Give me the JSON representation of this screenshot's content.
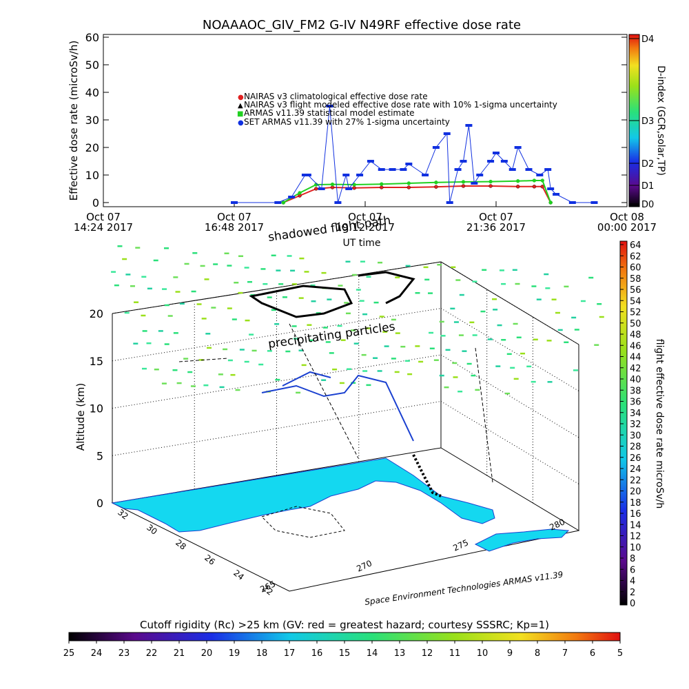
{
  "title": "NOAAAOC_GIV_FM2  G-IV   N49RF  effective dose rate",
  "top_chart": {
    "ylabel": "Effective dose rate (microSv/h)",
    "xlabel": "UT time",
    "yticks": [
      "0",
      "10",
      "20",
      "30",
      "40",
      "50",
      "60"
    ],
    "xticks": [
      {
        "l1": "Oct 07",
        "l2": "14:24 2017"
      },
      {
        "l1": "Oct 07",
        "l2": "16:48 2017"
      },
      {
        "l1": "Oct 07",
        "l2": "19:12 2017"
      },
      {
        "l1": "Oct 07",
        "l2": "21:36 2017"
      },
      {
        "l1": "Oct 08",
        "l2": "00:00 2017"
      }
    ],
    "legend": [
      {
        "symbol": "●",
        "text": "NAIRAS v3 climatological effective dose rate"
      },
      {
        "symbol": "▲",
        "text": "NAIRAS v3 flight modeled effective dose rate with 10% 1-sigma uncertainty"
      },
      {
        "symbol": "■",
        "text": "ARMAS v11.39 statistical model estimate"
      },
      {
        "symbol": "●",
        "text": "SET ARMAS v11.39 with 27% 1-sigma uncertainty"
      }
    ],
    "dindex": {
      "label": "D-index (GCR,solar,TP)",
      "ticks": [
        "D4",
        "D3",
        "D2",
        "D1",
        "D0"
      ]
    }
  },
  "chart_data": [
    {
      "type": "line",
      "title": "NOAAAOC_GIV_FM2  G-IV   N49RF  effective dose rate",
      "xlabel": "UT time",
      "ylabel": "Effective dose rate (microSv/h)",
      "x_unit": "UT hours since Oct 07 00:00 2017",
      "xlim": [
        14.4,
        24.0
      ],
      "ylim": [
        0,
        60
      ],
      "series": [
        {
          "name": "NAIRAS v3 climatological effective dose rate",
          "color": "#e02020",
          "x": [
            17.7,
            18.0,
            18.3,
            18.6,
            19.0,
            19.5,
            20.0,
            20.5,
            21.0,
            21.5,
            22.0,
            22.3,
            22.45,
            22.6
          ],
          "values": [
            0.0,
            2.5,
            5.0,
            5.5,
            5.3,
            5.5,
            5.5,
            5.7,
            6.0,
            6.0,
            5.8,
            5.8,
            5.8,
            0.0
          ]
        },
        {
          "name": "ARMAS v11.39 statistical model estimate",
          "color": "#20d020",
          "x": [
            17.7,
            18.0,
            18.3,
            18.6,
            19.0,
            19.5,
            20.0,
            20.5,
            21.0,
            21.5,
            22.0,
            22.3,
            22.45,
            22.6
          ],
          "values": [
            0.0,
            3.5,
            6.5,
            6.6,
            6.5,
            6.7,
            7.0,
            7.3,
            7.5,
            7.6,
            7.8,
            8.0,
            8.0,
            0.0
          ]
        },
        {
          "name": "SET ARMAS v11.39 with 27% 1-sigma uncertainty",
          "color": "#1030e0",
          "x": [
            16.8,
            17.6,
            17.85,
            18.1,
            18.15,
            18.4,
            18.55,
            18.7,
            18.85,
            18.9,
            19.1,
            19.3,
            19.5,
            19.7,
            19.9,
            20.0,
            20.3,
            20.5,
            20.7,
            20.75,
            20.9,
            21.0,
            21.1,
            21.2,
            21.3,
            21.5,
            21.6,
            21.75,
            21.9,
            22.0,
            22.2,
            22.4,
            22.55,
            22.6,
            22.7,
            23.0,
            23.4
          ],
          "values": [
            0,
            0,
            2,
            10,
            10,
            5,
            35,
            0,
            10,
            5,
            10,
            15,
            12,
            12,
            12,
            14,
            10,
            20,
            25,
            0,
            12,
            15,
            28,
            7,
            10,
            15,
            18,
            15,
            12,
            20,
            12,
            10,
            12,
            5,
            3,
            0,
            0
          ]
        }
      ]
    },
    {
      "type": "scatter",
      "title": "",
      "ylabel": "Altitude (km)",
      "zticks": [
        "0",
        "5",
        "10",
        "15",
        "20"
      ],
      "lat_ticks": [
        "32",
        "30",
        "28",
        "26",
        "24",
        "22"
      ],
      "lon_ticks": [
        "265",
        "270",
        "275",
        "280"
      ],
      "annotations": [
        "shadowed flight path",
        "precipitating particles"
      ],
      "dose_colorbar_label": "flight effective dose rate microSv/h",
      "dose_colorbar_ticks": [
        "64",
        "62",
        "60",
        "58",
        "56",
        "54",
        "52",
        "50",
        "48",
        "46",
        "44",
        "42",
        "40",
        "38",
        "36",
        "34",
        "32",
        "30",
        "28",
        "26",
        "24",
        "22",
        "20",
        "18",
        "16",
        "14",
        "12",
        "10",
        "8",
        "6",
        "4",
        "2",
        "0"
      ],
      "credit": "Space Environment Technologies ARMAS v11.39"
    }
  ],
  "cutoff_bar": {
    "label": "Cutoff rigidity (Rc) >25 km (GV: red = greatest hazard; courtesy SSSRC; Kp=1)",
    "ticks": [
      "25",
      "24",
      "23",
      "22",
      "21",
      "20",
      "19",
      "18",
      "17",
      "16",
      "15",
      "14",
      "13",
      "12",
      "11",
      "10",
      "9",
      "8",
      "7",
      "6",
      "5"
    ]
  }
}
